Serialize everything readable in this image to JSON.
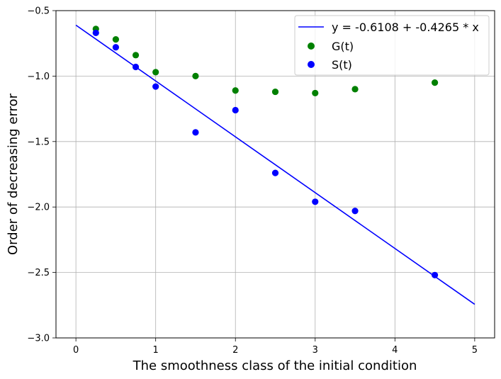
{
  "chart_data": {
    "type": "scatter",
    "title": "",
    "xlabel": "The smoothness class of the initial condition",
    "ylabel": "Order of decreasing error",
    "xlim": [
      -0.25,
      5.25
    ],
    "ylim": [
      -3.0,
      -0.5
    ],
    "xticks": [
      0,
      1,
      2,
      3,
      4,
      5
    ],
    "yticks": [
      -3.0,
      -2.5,
      -2.0,
      -1.5,
      -1.0,
      -0.5
    ],
    "xtick_labels": [
      "0",
      "1",
      "2",
      "3",
      "4",
      "5"
    ],
    "ytick_labels": [
      "−3.0",
      "−2.5",
      "−2.0",
      "−1.5",
      "−1.0",
      "−0.5"
    ],
    "grid": true,
    "legend_position": "top-right",
    "fit_line": {
      "name": "y = -0.6108 + -0.4265 * x",
      "color": "#0000ff",
      "intercept": -0.6108,
      "slope": -0.4265,
      "x_range": [
        0,
        5
      ]
    },
    "series": [
      {
        "name": "G(t)",
        "color": "#008000",
        "x": [
          0.25,
          0.5,
          0.75,
          1.0,
          1.5,
          2.0,
          2.5,
          3.0,
          3.5,
          4.5
        ],
        "y": [
          -0.64,
          -0.72,
          -0.84,
          -0.97,
          -1.0,
          -1.11,
          -1.12,
          -1.13,
          -1.1,
          -1.05
        ]
      },
      {
        "name": "S(t)",
        "color": "#0000ff",
        "x": [
          0.25,
          0.5,
          0.75,
          1.0,
          1.5,
          2.0,
          2.5,
          3.0,
          3.5,
          4.5
        ],
        "y": [
          -0.67,
          -0.78,
          -0.93,
          -1.08,
          -1.43,
          -1.26,
          -1.74,
          -1.96,
          -2.03,
          -2.52
        ]
      }
    ]
  }
}
